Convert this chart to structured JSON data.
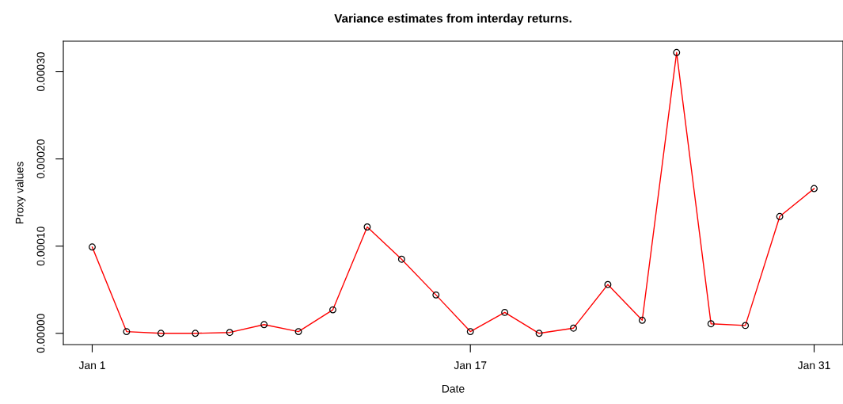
{
  "chart_data": {
    "type": "line",
    "title": "Variance estimates from interday returns.",
    "xlabel": "Date",
    "ylabel": "Proxy values",
    "categories": [
      "Jan 1",
      null,
      null,
      null,
      null,
      null,
      null,
      null,
      null,
      null,
      null,
      "Jan 17",
      null,
      null,
      null,
      null,
      null,
      null,
      null,
      null,
      null,
      "Jan 31"
    ],
    "series": [
      {
        "color": "#ff0000",
        "values": [
          9.9e-05,
          2e-06,
          0.0,
          0.0,
          1e-06,
          1e-05,
          2e-06,
          2.7e-05,
          0.000122,
          8.5e-05,
          4.4e-05,
          2e-06,
          2.4e-05,
          0.0,
          6e-06,
          5.6e-05,
          1.5e-05,
          0.000322,
          1.1e-05,
          9e-06,
          0.000134,
          0.000166
        ]
      }
    ],
    "marker": "circle",
    "line_style": "solid",
    "grid": false,
    "legend": false,
    "ylim": [
      -1.29e-05,
      0.000335
    ],
    "yticks": [
      {
        "value": 0,
        "label": "0.00000"
      },
      {
        "value": 0.0001,
        "label": "0.00010"
      },
      {
        "value": 0.0002,
        "label": "0.00020"
      },
      {
        "value": 0.0003,
        "label": "0.00030"
      }
    ]
  }
}
